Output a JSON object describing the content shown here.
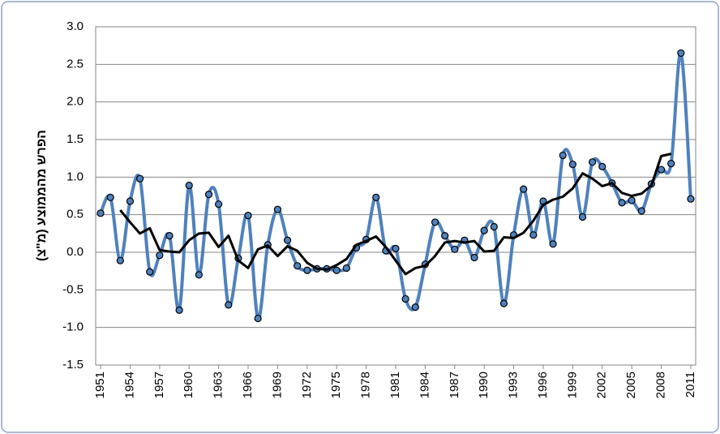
{
  "chart_data": {
    "type": "line",
    "y_label": "הפרש מהממוצע (מ\"צ)",
    "x": [
      1951,
      1952,
      1953,
      1954,
      1955,
      1956,
      1957,
      1958,
      1959,
      1960,
      1961,
      1962,
      1963,
      1964,
      1965,
      1966,
      1967,
      1968,
      1969,
      1970,
      1971,
      1972,
      1973,
      1974,
      1975,
      1976,
      1977,
      1978,
      1979,
      1980,
      1981,
      1982,
      1983,
      1984,
      1985,
      1986,
      1987,
      1988,
      1989,
      1990,
      1991,
      1992,
      1993,
      1994,
      1995,
      1996,
      1997,
      1998,
      1999,
      2000,
      2001,
      2002,
      2003,
      2004,
      2005,
      2006,
      2007,
      2008,
      2009,
      2010,
      2011
    ],
    "series": [
      {
        "color": "#4f81bd",
        "smooth": true,
        "markers": true,
        "values": [
          0.52,
          0.73,
          -0.11,
          0.68,
          0.98,
          -0.26,
          -0.04,
          0.22,
          -0.77,
          0.89,
          -0.3,
          0.77,
          0.64,
          -0.7,
          -0.08,
          0.49,
          -0.88,
          0.1,
          0.57,
          0.16,
          -0.18,
          -0.24,
          -0.22,
          -0.22,
          -0.24,
          -0.21,
          0.06,
          0.17,
          0.73,
          0.02,
          0.05,
          -0.62,
          -0.73,
          -0.16,
          0.4,
          0.22,
          0.04,
          0.16,
          -0.07,
          0.29,
          0.34,
          -0.68,
          0.23,
          0.84,
          0.23,
          0.68,
          0.11,
          1.29,
          1.17,
          0.47,
          1.2,
          1.14,
          0.92,
          0.66,
          0.69,
          0.55,
          0.91,
          1.1,
          1.18,
          2.65,
          0.71
        ]
      },
      {
        "color": "#000000",
        "smooth": false,
        "markers": false,
        "values": [
          null,
          null,
          0.56,
          0.4,
          0.25,
          0.32,
          0.03,
          0.01,
          0.0,
          0.16,
          0.25,
          0.26,
          0.07,
          0.22,
          -0.11,
          -0.21,
          0.04,
          0.09,
          -0.05,
          0.08,
          0.02,
          -0.14,
          -0.22,
          -0.23,
          -0.17,
          -0.09,
          0.1,
          0.15,
          0.21,
          0.07,
          -0.11,
          -0.29,
          -0.21,
          -0.18,
          -0.05,
          0.13,
          0.15,
          0.13,
          0.15,
          0.01,
          0.02,
          0.2,
          0.19,
          0.26,
          0.42,
          0.63,
          0.7,
          0.74,
          0.85,
          1.05,
          0.98,
          0.88,
          0.92,
          0.79,
          0.75,
          0.78,
          0.89,
          1.28,
          1.31,
          null,
          null
        ]
      }
    ],
    "xlim": [
      1950.5,
      2011.5
    ],
    "xticks": [
      1951,
      1954,
      1957,
      1960,
      1963,
      1966,
      1969,
      1972,
      1975,
      1978,
      1981,
      1984,
      1987,
      1990,
      1993,
      1996,
      1999,
      2002,
      2005,
      2008,
      2011
    ],
    "ylim": [
      -1.5,
      3
    ],
    "yticks": [
      {
        "value": 3,
        "label": "3.0"
      },
      2.5,
      {
        "value": 2,
        "label": "2.0"
      },
      1.5,
      {
        "value": 1,
        "label": "1.0"
      },
      0.5,
      {
        "value": 0,
        "label": "0.0"
      },
      -0.5,
      {
        "value": -1,
        "label": "-1.0"
      },
      -1.5
    ],
    "grid": true
  }
}
